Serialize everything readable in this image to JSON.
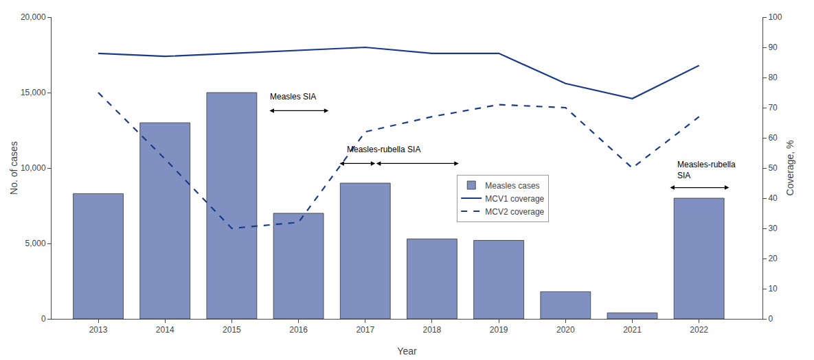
{
  "chart_data": {
    "type": "bar",
    "x": [
      2013,
      2014,
      2015,
      2016,
      2017,
      2018,
      2019,
      2020,
      2021,
      2022
    ],
    "xlabel": "Year",
    "ylabel": "No. of cases",
    "y2label": "Coverage, %",
    "xlim": [
      2012.3,
      2022.95
    ],
    "xticks": [
      2013,
      2014,
      2015,
      2016,
      2017,
      2018,
      2019,
      2020,
      2021,
      2022
    ],
    "ylim": [
      0,
      20000
    ],
    "yticks": [
      0,
      {
        "value": 5000,
        "label": "5,000"
      },
      {
        "value": 10000,
        "label": "10,000"
      },
      {
        "value": 15000,
        "label": "15,000"
      },
      {
        "value": 20000,
        "label": "20,000"
      }
    ],
    "y2lim": [
      0,
      100
    ],
    "y2ticks": [
      0,
      10,
      20,
      30,
      40,
      50,
      60,
      70,
      80,
      90,
      100
    ],
    "grid": false,
    "legend": "center",
    "series": [
      {
        "name": "Measles cases",
        "type": "bar",
        "color": "#8090c0",
        "values": [
          8300,
          13000,
          15000,
          7000,
          9000,
          5300,
          5200,
          1800,
          400,
          8000
        ]
      },
      {
        "name": "MCV1 coverage",
        "type": "line",
        "axis": "y2",
        "color": "#1a3a8a",
        "line_style": "solid",
        "values": [
          88,
          87,
          88,
          89,
          90,
          88,
          88,
          78,
          73,
          84
        ]
      },
      {
        "name": "MCV2 coverage",
        "type": "line",
        "axis": "y2",
        "color": "#1a3a8a",
        "line_style": "dashed",
        "values": [
          75,
          53,
          30,
          32,
          62,
          67,
          71,
          70,
          50,
          67
        ]
      }
    ],
    "annotations": [
      {
        "text": "Measles SIA",
        "x": 2015.55,
        "y": 14300,
        "arrows": [
          {
            "x": [
              2015.55,
              2016.45
            ],
            "y": 13800
          }
        ]
      },
      {
        "text": "Measles-rubella SIA",
        "x": 2016.7,
        "y": 10800,
        "arrows": [
          {
            "x": [
              2016.6,
              2017.15
            ],
            "y": 10300
          },
          {
            "x": [
              2017.15,
              2018.4
            ],
            "y": 10300
          }
        ]
      },
      {
        "text": "Measles-rubella\nSIA",
        "x": 2021.65,
        "y": 9100,
        "arrows": [
          {
            "x": [
              2021.55,
              2022.45
            ],
            "y": 8700
          }
        ]
      }
    ]
  }
}
